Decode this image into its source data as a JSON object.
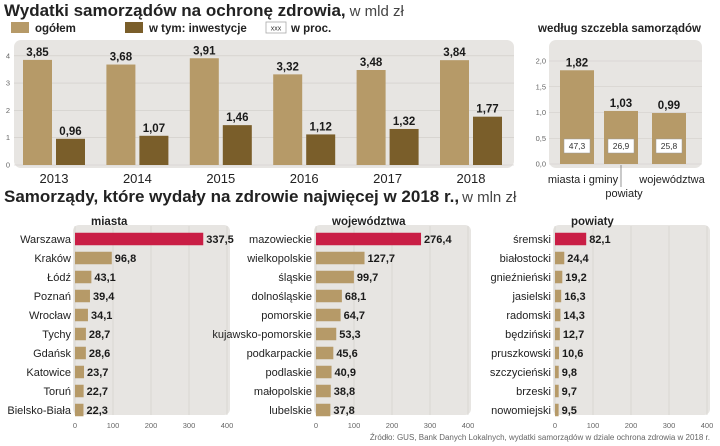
{
  "colors": {
    "panel": "#e7e5e2",
    "light": "#b69a68",
    "dark": "#7a5e2a",
    "red": "#c91e45",
    "axis": "#999999"
  },
  "header": {
    "title": "Wydatki samorządów na ochronę zdrowia,",
    "unit": "w mld zł"
  },
  "legend": {
    "total": "ogółem",
    "invest": "w tym: inwestycje",
    "pct_box": "xxx",
    "pct": "w proc."
  },
  "section2": {
    "title": "Samorządy, które wydały na zdrowie najwięcej  w 2018 r.,",
    "unit": "w mln zł"
  },
  "source": "Źródło: GUS, Bank Danych Lokalnych, wydatki samorządów w dziale ochrona zdrowia w 2018 r.",
  "chart_data": [
    {
      "type": "bar",
      "title": "Wydatki samorządów na ochronę zdrowia, w mld zł",
      "categories": [
        "2013",
        "2014",
        "2015",
        "2016",
        "2017",
        "2018"
      ],
      "series": [
        {
          "name": "ogółem",
          "values": [
            3.85,
            3.68,
            3.91,
            3.32,
            3.48,
            3.84
          ],
          "labels": [
            "3,85",
            "3,68",
            "3,91",
            "3,32",
            "3,48",
            "3,84"
          ]
        },
        {
          "name": "w tym: inwestycje",
          "values": [
            0.96,
            1.07,
            1.46,
            1.12,
            1.32,
            1.77
          ],
          "labels": [
            "0,96",
            "1,07",
            "1,46",
            "1,12",
            "1,32",
            "1,77"
          ]
        }
      ],
      "ylim": [
        0,
        4
      ],
      "yticks": [
        "0",
        "1",
        "2",
        "3",
        "4"
      ]
    },
    {
      "type": "bar",
      "title": "według szczebla samorządów",
      "categories": [
        "miasta i gminy",
        "powiaty",
        "województwa"
      ],
      "values": [
        1.82,
        1.03,
        0.99
      ],
      "labels": [
        "1,82",
        "1,03",
        "0,99"
      ],
      "percent": [
        "47,3",
        "26,9",
        "25,8"
      ],
      "ylim": [
        0,
        2
      ],
      "yticks": [
        "0,0",
        "0,5",
        "1,0",
        "1,5",
        "2,0"
      ]
    },
    {
      "type": "bar",
      "orientation": "horizontal",
      "title": "miasta",
      "categories": [
        "Warszawa",
        "Kraków",
        "Łódź",
        "Poznań",
        "Wrocław",
        "Tychy",
        "Gdańsk",
        "Katowice",
        "Toruń",
        "Bielsko-Biała"
      ],
      "values": [
        337.5,
        96.8,
        43.1,
        39.4,
        34.1,
        28.7,
        28.6,
        23.7,
        22.7,
        22.3
      ],
      "labels": [
        "337,5",
        "96,8",
        "43,1",
        "39,4",
        "34,1",
        "28,7",
        "28,6",
        "23,7",
        "22,7",
        "22,3"
      ],
      "xlim": [
        0,
        400
      ],
      "xticks": [
        "0",
        "100",
        "200",
        "300",
        "400"
      ]
    },
    {
      "type": "bar",
      "orientation": "horizontal",
      "title": "województwa",
      "categories": [
        "mazowieckie",
        "wielkopolskie",
        "śląskie",
        "dolnośląskie",
        "pomorskie",
        "kujawsko-pomorskie",
        "podkarpackie",
        "podlaskie",
        "małopolskie",
        "lubelskie"
      ],
      "values": [
        276.4,
        127.7,
        99.7,
        68.1,
        64.7,
        53.3,
        45.6,
        40.9,
        38.8,
        37.8
      ],
      "labels": [
        "276,4",
        "127,7",
        "99,7",
        "68,1",
        "64,7",
        "53,3",
        "45,6",
        "40,9",
        "38,8",
        "37,8"
      ],
      "xlim": [
        0,
        400
      ],
      "xticks": [
        "0",
        "100",
        "200",
        "300",
        "400"
      ]
    },
    {
      "type": "bar",
      "orientation": "horizontal",
      "title": "powiaty",
      "categories": [
        "śremski",
        "białostocki",
        "gnieźnieński",
        "jasielski",
        "radomski",
        "będziński",
        "pruszkowski",
        "szczycieński",
        "brzeski",
        "nowomiejski"
      ],
      "values": [
        82.1,
        24.4,
        19.2,
        16.3,
        14.3,
        12.7,
        10.6,
        9.8,
        9.7,
        9.5
      ],
      "labels": [
        "82,1",
        "24,4",
        "19,2",
        "16,3",
        "14,3",
        "12,7",
        "10,6",
        "9,8",
        "9,7",
        "9,5"
      ],
      "xlim": [
        0,
        400
      ],
      "xticks": [
        "0",
        "100",
        "200",
        "300",
        "400"
      ]
    }
  ]
}
